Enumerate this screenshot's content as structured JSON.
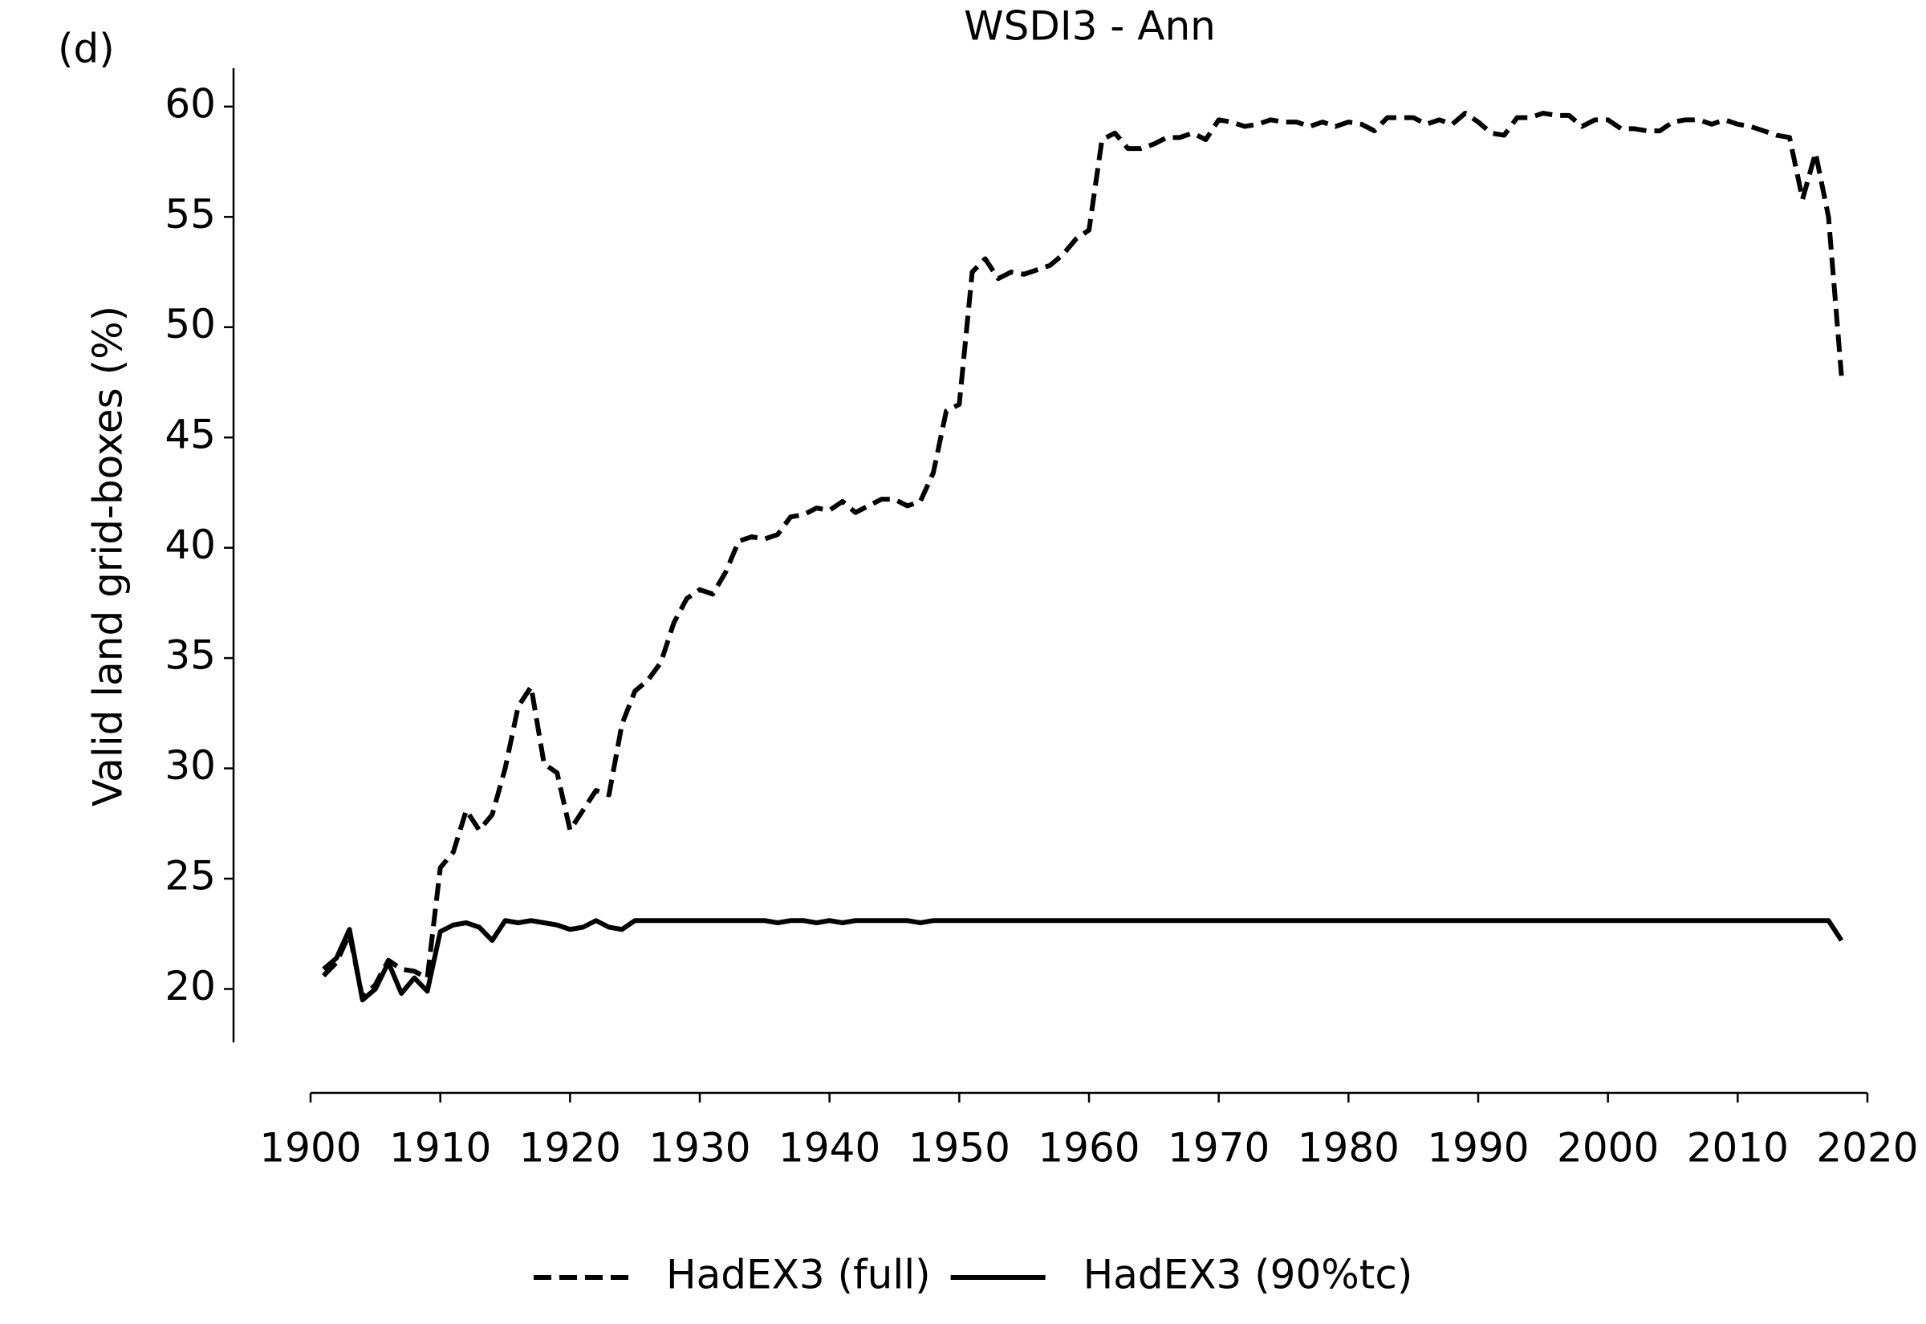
{
  "chart_data": {
    "type": "line",
    "title": "WSDI3 - Ann",
    "panel_label": "(d)",
    "ylabel": "Valid land grid-boxes (%)",
    "x": [
      1901,
      1902,
      1903,
      1904,
      1905,
      1906,
      1907,
      1908,
      1909,
      1910,
      1911,
      1912,
      1913,
      1914,
      1915,
      1916,
      1917,
      1918,
      1919,
      1920,
      1921,
      1922,
      1923,
      1924,
      1925,
      1926,
      1927,
      1928,
      1929,
      1930,
      1931,
      1932,
      1933,
      1934,
      1935,
      1936,
      1937,
      1938,
      1939,
      1940,
      1941,
      1942,
      1943,
      1944,
      1945,
      1946,
      1947,
      1948,
      1949,
      1950,
      1951,
      1952,
      1953,
      1954,
      1955,
      1956,
      1957,
      1958,
      1959,
      1960,
      1961,
      1962,
      1963,
      1964,
      1965,
      1966,
      1967,
      1968,
      1969,
      1970,
      1971,
      1972,
      1973,
      1974,
      1975,
      1976,
      1977,
      1978,
      1979,
      1980,
      1981,
      1982,
      1983,
      1984,
      1985,
      1986,
      1987,
      1988,
      1989,
      1990,
      1991,
      1992,
      1993,
      1994,
      1995,
      1996,
      1997,
      1998,
      1999,
      2000,
      2001,
      2002,
      2003,
      2004,
      2005,
      2006,
      2007,
      2008,
      2009,
      2010,
      2011,
      2012,
      2013,
      2014,
      2015,
      2016,
      2017,
      2018
    ],
    "series": [
      {
        "name": "HadEX3 (full)",
        "color": "#000000",
        "linestyle": "dashed",
        "values": [
          20.6,
          21.2,
          22.5,
          19.6,
          20.2,
          21.3,
          20.9,
          20.8,
          20.5,
          25.5,
          26.2,
          28.1,
          27.2,
          27.9,
          30.0,
          32.8,
          33.7,
          30.2,
          29.8,
          27.2,
          28.1,
          29.0,
          28.8,
          32.0,
          33.5,
          34.0,
          34.8,
          36.6,
          37.7,
          38.1,
          37.9,
          38.9,
          40.3,
          40.5,
          40.4,
          40.6,
          41.4,
          41.5,
          41.8,
          41.7,
          42.1,
          41.6,
          41.9,
          42.2,
          42.2,
          41.9,
          42.1,
          43.4,
          46.2,
          46.5,
          52.5,
          53.1,
          52.2,
          52.5,
          52.4,
          52.6,
          52.8,
          53.3,
          54.0,
          54.4,
          58.5,
          58.8,
          58.1,
          58.1,
          58.3,
          58.6,
          58.6,
          58.8,
          58.5,
          59.4,
          59.3,
          59.1,
          59.2,
          59.4,
          59.3,
          59.3,
          59.1,
          59.3,
          59.1,
          59.3,
          59.2,
          58.9,
          59.5,
          59.5,
          59.5,
          59.2,
          59.4,
          59.2,
          59.7,
          59.3,
          58.8,
          58.7,
          59.5,
          59.5,
          59.7,
          59.6,
          59.6,
          59.1,
          59.4,
          59.4,
          59.0,
          59.0,
          58.9,
          58.9,
          59.3,
          59.4,
          59.4,
          59.2,
          59.4,
          59.2,
          59.1,
          58.9,
          58.7,
          58.6,
          55.8,
          57.9,
          55.0,
          47.8
        ]
      },
      {
        "name": "HadEX3 (90%tc)",
        "color": "#000000",
        "linestyle": "solid",
        "values": [
          20.9,
          21.4,
          22.7,
          19.5,
          20.0,
          21.2,
          19.8,
          20.5,
          19.9,
          22.6,
          22.9,
          23.0,
          22.8,
          22.2,
          23.1,
          23.0,
          23.1,
          23.0,
          22.9,
          22.7,
          22.8,
          23.1,
          22.8,
          22.7,
          23.1,
          23.1,
          23.1,
          23.1,
          23.1,
          23.1,
          23.1,
          23.1,
          23.1,
          23.1,
          23.1,
          23.0,
          23.1,
          23.1,
          23.0,
          23.1,
          23.0,
          23.1,
          23.1,
          23.1,
          23.1,
          23.1,
          23.0,
          23.1,
          23.1,
          23.1,
          23.1,
          23.1,
          23.1,
          23.1,
          23.1,
          23.1,
          23.1,
          23.1,
          23.1,
          23.1,
          23.1,
          23.1,
          23.1,
          23.1,
          23.1,
          23.1,
          23.1,
          23.1,
          23.1,
          23.1,
          23.1,
          23.1,
          23.1,
          23.1,
          23.1,
          23.1,
          23.1,
          23.1,
          23.1,
          23.1,
          23.1,
          23.1,
          23.1,
          23.1,
          23.1,
          23.1,
          23.1,
          23.1,
          23.1,
          23.1,
          23.1,
          23.1,
          23.1,
          23.1,
          23.1,
          23.1,
          23.1,
          23.1,
          23.1,
          23.1,
          23.1,
          23.1,
          23.1,
          23.1,
          23.1,
          23.1,
          23.1,
          23.1,
          23.1,
          23.1,
          23.1,
          23.1,
          23.1,
          23.1,
          23.1,
          23.1,
          23.1,
          22.2
        ]
      }
    ],
    "xlim": [
      1900,
      2020
    ],
    "xticks": [
      1900,
      1910,
      1920,
      1930,
      1940,
      1950,
      1960,
      1970,
      1980,
      1990,
      2000,
      2010,
      2020
    ],
    "ylim": [
      17.58,
      61.74
    ],
    "yticks": [
      20,
      25,
      30,
      35,
      40,
      45,
      50,
      55,
      60
    ],
    "legend": "bottom"
  }
}
